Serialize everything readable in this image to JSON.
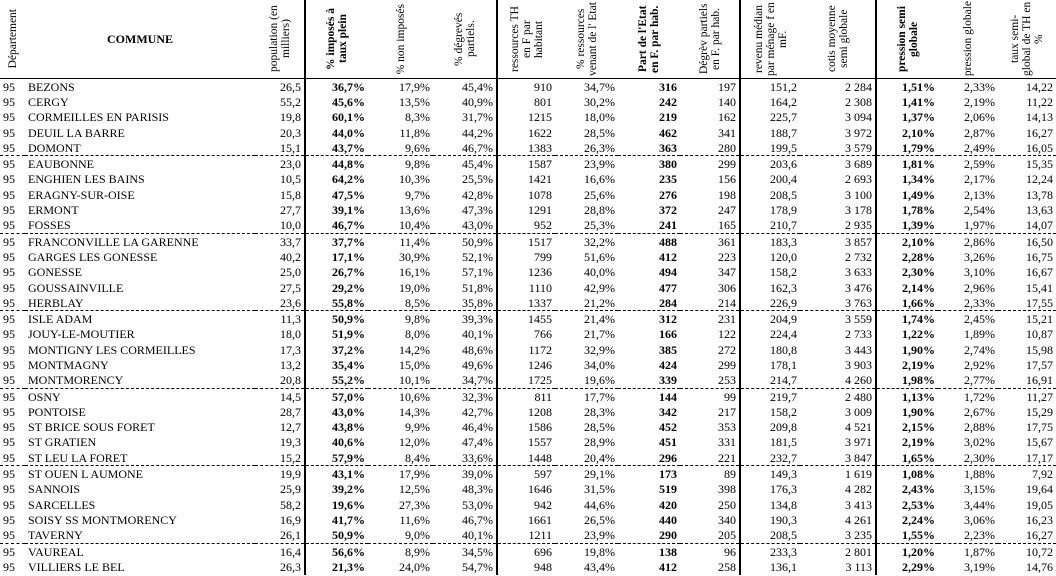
{
  "table": {
    "headers": [
      "Département",
      "COMMUNE",
      "population (en milliers)",
      "% imposés à taux plein",
      "% non imposés",
      "% dégrevés partiels.",
      "ressources TH en F par habitant",
      "% ressources venant de l' Etat",
      "Part de l'Etat en F. par hab.",
      "Dégrèv partiels en F. par hab.",
      "revenu médian par ménage f en mF.",
      "cotis moyenne semi globale",
      "pression semi globale",
      "pression globale",
      "taux semi-global de TH en %"
    ],
    "rows": [
      [
        "95",
        "BEZONS",
        "26,5",
        "36,7%",
        "17,9%",
        "45,4%",
        "910",
        "34,7%",
        "316",
        "197",
        "151,2",
        "2 284",
        "1,51%",
        "2,33%",
        "14,22"
      ],
      [
        "95",
        "CERGY",
        "55,2",
        "45,6%",
        "13,5%",
        "40,9%",
        "801",
        "30,2%",
        "242",
        "140",
        "164,2",
        "2 308",
        "1,41%",
        "2,19%",
        "11,22"
      ],
      [
        "95",
        "CORMEILLES EN PARISIS",
        "19,8",
        "60,1%",
        "8,3%",
        "31,7%",
        "1215",
        "18,0%",
        "219",
        "162",
        "225,7",
        "3 094",
        "1,37%",
        "2,06%",
        "14,13"
      ],
      [
        "95",
        "DEUIL LA BARRE",
        "20,3",
        "44,0%",
        "11,8%",
        "44,2%",
        "1622",
        "28,5%",
        "462",
        "341",
        "188,7",
        "3 972",
        "2,10%",
        "2,87%",
        "16,27"
      ],
      [
        "95",
        "DOMONT",
        "15,1",
        "43,7%",
        "9,6%",
        "46,7%",
        "1383",
        "26,3%",
        "363",
        "280",
        "199,5",
        "3 579",
        "1,79%",
        "2,49%",
        "16,05"
      ],
      [
        "95",
        "EAUBONNE",
        "23,0",
        "44,8%",
        "9,8%",
        "45,4%",
        "1587",
        "23,9%",
        "380",
        "299",
        "203,6",
        "3 689",
        "1,81%",
        "2,59%",
        "15,35"
      ],
      [
        "95",
        "ENGHIEN LES BAINS",
        "10,5",
        "64,2%",
        "10,3%",
        "25,5%",
        "1421",
        "16,6%",
        "235",
        "156",
        "200,4",
        "2 693",
        "1,34%",
        "2,17%",
        "12,24"
      ],
      [
        "95",
        "ERAGNY-SUR-OISE",
        "15,8",
        "47,5%",
        "9,7%",
        "42,8%",
        "1078",
        "25,6%",
        "276",
        "198",
        "208,5",
        "3 100",
        "1,49%",
        "2,13%",
        "13,78"
      ],
      [
        "95",
        "ERMONT",
        "27,7",
        "39,1%",
        "13,6%",
        "47,3%",
        "1291",
        "28,8%",
        "372",
        "247",
        "178,9",
        "3 178",
        "1,78%",
        "2,54%",
        "13,63"
      ],
      [
        "95",
        "FOSSES",
        "10,0",
        "46,7%",
        "10,4%",
        "43,0%",
        "952",
        "25,3%",
        "241",
        "165",
        "210,7",
        "2 935",
        "1,39%",
        "1,97%",
        "14,07"
      ],
      [
        "95",
        "FRANCONVILLE LA GARENNE",
        "33,7",
        "37,7%",
        "11,4%",
        "50,9%",
        "1517",
        "32,2%",
        "488",
        "361",
        "183,3",
        "3 857",
        "2,10%",
        "2,86%",
        "16,50"
      ],
      [
        "95",
        "GARGES LES GONESSE",
        "40,2",
        "17,1%",
        "30,9%",
        "52,1%",
        "799",
        "51,6%",
        "412",
        "223",
        "120,0",
        "2 732",
        "2,28%",
        "3,26%",
        "16,75"
      ],
      [
        "95",
        "GONESSE",
        "25,0",
        "26,7%",
        "16,1%",
        "57,1%",
        "1236",
        "40,0%",
        "494",
        "347",
        "158,2",
        "3 633",
        "2,30%",
        "3,10%",
        "16,67"
      ],
      [
        "95",
        "GOUSSAINVILLE",
        "27,5",
        "29,2%",
        "19,0%",
        "51,8%",
        "1110",
        "42,9%",
        "477",
        "306",
        "162,3",
        "3 476",
        "2,14%",
        "2,96%",
        "15,41"
      ],
      [
        "95",
        "HERBLAY",
        "23,6",
        "55,8%",
        "8,5%",
        "35,8%",
        "1337",
        "21,2%",
        "284",
        "214",
        "226,9",
        "3 763",
        "1,66%",
        "2,33%",
        "17,55"
      ],
      [
        "95",
        "ISLE ADAM",
        "11,3",
        "50,9%",
        "9,8%",
        "39,3%",
        "1455",
        "21,4%",
        "312",
        "231",
        "204,9",
        "3 559",
        "1,74%",
        "2,45%",
        "15,21"
      ],
      [
        "95",
        "JOUY-LE-MOUTIER",
        "18,0",
        "51,9%",
        "8,0%",
        "40,1%",
        "766",
        "21,7%",
        "166",
        "122",
        "224,4",
        "2 733",
        "1,22%",
        "1,89%",
        "10,87"
      ],
      [
        "95",
        "MONTIGNY LES CORMEILLES",
        "17,3",
        "37,2%",
        "14,2%",
        "48,6%",
        "1172",
        "32,9%",
        "385",
        "272",
        "180,8",
        "3 443",
        "1,90%",
        "2,74%",
        "15,98"
      ],
      [
        "95",
        "MONTMAGNY",
        "13,2",
        "35,4%",
        "15,0%",
        "49,6%",
        "1246",
        "34,0%",
        "424",
        "299",
        "178,1",
        "3 903",
        "2,19%",
        "2,92%",
        "17,57"
      ],
      [
        "95",
        "MONTMORENCY",
        "20,8",
        "55,2%",
        "10,1%",
        "34,7%",
        "1725",
        "19,6%",
        "339",
        "253",
        "214,7",
        "4 260",
        "1,98%",
        "2,77%",
        "16,91"
      ],
      [
        "95",
        "OSNY",
        "14,5",
        "57,0%",
        "10,6%",
        "32,3%",
        "811",
        "17,7%",
        "144",
        "99",
        "219,7",
        "2 480",
        "1,13%",
        "1,72%",
        "11,27"
      ],
      [
        "95",
        "PONTOISE",
        "28,7",
        "43,0%",
        "14,3%",
        "42,7%",
        "1208",
        "28,3%",
        "342",
        "217",
        "158,2",
        "3 009",
        "1,90%",
        "2,67%",
        "15,29"
      ],
      [
        "95",
        "ST BRICE SOUS FORET",
        "12,7",
        "43,8%",
        "9,9%",
        "46,4%",
        "1586",
        "28,5%",
        "452",
        "353",
        "209,8",
        "4 521",
        "2,15%",
        "2,88%",
        "17,75"
      ],
      [
        "95",
        "ST GRATIEN",
        "19,3",
        "40,6%",
        "12,0%",
        "47,4%",
        "1557",
        "28,9%",
        "451",
        "331",
        "181,5",
        "3 971",
        "2,19%",
        "3,02%",
        "15,67"
      ],
      [
        "95",
        "ST LEU LA FORET",
        "15,2",
        "57,9%",
        "8,4%",
        "33,6%",
        "1448",
        "20,4%",
        "296",
        "221",
        "232,7",
        "3 847",
        "1,65%",
        "2,30%",
        "17,17"
      ],
      [
        "95",
        "ST OUEN L AUMONE",
        "19,9",
        "43,1%",
        "17,9%",
        "39,0%",
        "597",
        "29,1%",
        "173",
        "89",
        "149,3",
        "1 619",
        "1,08%",
        "1,88%",
        "7,92"
      ],
      [
        "95",
        "SANNOIS",
        "25,9",
        "39,2%",
        "12,5%",
        "48,3%",
        "1646",
        "31,5%",
        "519",
        "398",
        "176,3",
        "4 282",
        "2,43%",
        "3,15%",
        "19,64"
      ],
      [
        "95",
        "SARCELLES",
        "58,2",
        "19,6%",
        "27,3%",
        "53,0%",
        "942",
        "44,6%",
        "420",
        "250",
        "134,8",
        "3 413",
        "2,53%",
        "3,44%",
        "19,05"
      ],
      [
        "95",
        "SOISY SS MONTMORENCY",
        "16,9",
        "41,7%",
        "11,6%",
        "46,7%",
        "1661",
        "26,5%",
        "440",
        "340",
        "190,3",
        "4 261",
        "2,24%",
        "3,06%",
        "16,23"
      ],
      [
        "95",
        "TAVERNY",
        "26,1",
        "50,9%",
        "9,0%",
        "40,1%",
        "1211",
        "23,9%",
        "290",
        "205",
        "208,5",
        "3 235",
        "1,55%",
        "2,23%",
        "16,27"
      ],
      [
        "95",
        "VAUREAL",
        "16,4",
        "56,6%",
        "8,9%",
        "34,5%",
        "696",
        "19,8%",
        "138",
        "96",
        "233,3",
        "2 801",
        "1,20%",
        "1,87%",
        "10,72"
      ],
      [
        "95",
        "VILLIERS LE BEL",
        "26,3",
        "21,3%",
        "24,0%",
        "54,7%",
        "948",
        "43,4%",
        "412",
        "258",
        "136,1",
        "3 113",
        "2,29%",
        "3,19%",
        "14,76"
      ]
    ]
  }
}
